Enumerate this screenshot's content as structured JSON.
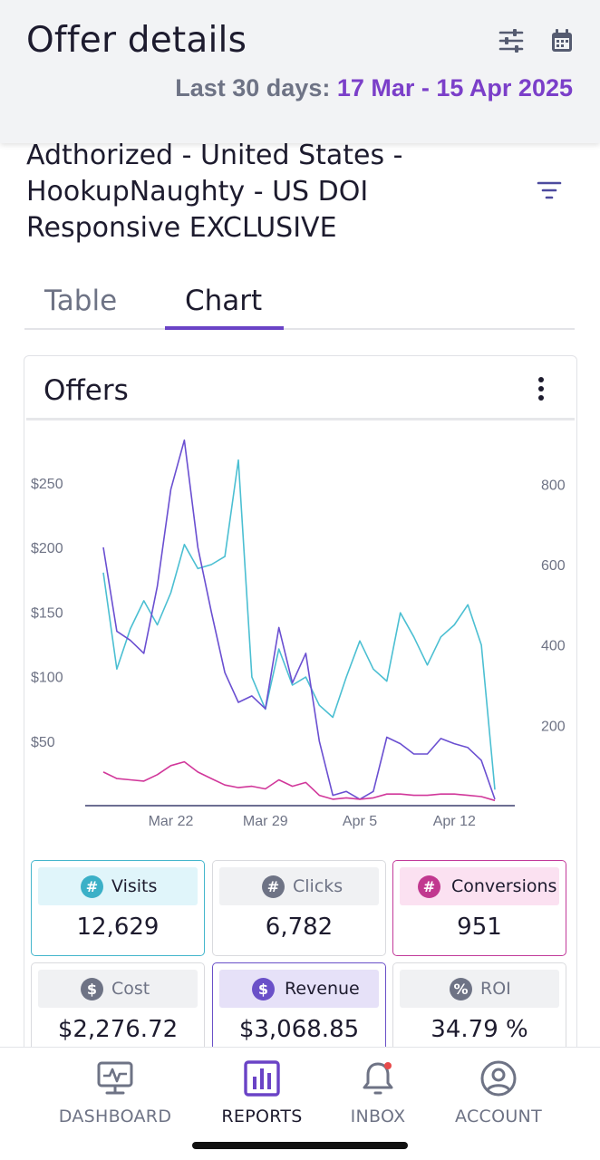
{
  "header": {
    "title": "Offer details",
    "date_label": "Last 30 days:",
    "date_value": "17 Mar - 15 Apr 2025"
  },
  "offer": {
    "name": "Adthorized - United States - HookupNaughty - US DOI Responsive EXCLUSIVE"
  },
  "tabs": [
    {
      "label": "Table",
      "active": false
    },
    {
      "label": "Chart",
      "active": true
    }
  ],
  "card": {
    "title": "Offers"
  },
  "chart_data": {
    "type": "line",
    "x_tick_labels": [
      "Mar 22",
      "Mar 29",
      "Apr 5",
      "Apr 12"
    ],
    "y_left": {
      "tick_labels": [
        "$50",
        "$100",
        "$150",
        "$200",
        "$250"
      ],
      "ticks": [
        50,
        100,
        150,
        200,
        250
      ],
      "range": [
        0,
        280
      ]
    },
    "y_right": {
      "tick_labels": [
        "200",
        "400",
        "600",
        "800"
      ],
      "ticks": [
        200,
        400,
        600,
        800
      ],
      "range": [
        0,
        900
      ]
    },
    "x": [
      "Mar 17",
      "Mar 18",
      "Mar 19",
      "Mar 20",
      "Mar 21",
      "Mar 22",
      "Mar 23",
      "Mar 24",
      "Mar 25",
      "Mar 26",
      "Mar 27",
      "Mar 28",
      "Mar 29",
      "Mar 30",
      "Mar 31",
      "Apr 1",
      "Apr 2",
      "Apr 3",
      "Apr 4",
      "Apr 5",
      "Apr 6",
      "Apr 7",
      "Apr 8",
      "Apr 9",
      "Apr 10",
      "Apr 11",
      "Apr 12",
      "Apr 13",
      "Apr 14",
      "Apr 15"
    ],
    "series": [
      {
        "axis": "right",
        "color": "#4bbfd2",
        "values": [
          580,
          340,
          440,
          510,
          450,
          530,
          650,
          590,
          600,
          620,
          860,
          320,
          240,
          390,
          300,
          320,
          250,
          220,
          320,
          410,
          340,
          310,
          480,
          420,
          350,
          420,
          450,
          500,
          400,
          40
        ]
      },
      {
        "axis": "left",
        "color": "#6a4fd1",
        "values": [
          200,
          135,
          128,
          118,
          170,
          245,
          283,
          200,
          150,
          103,
          80,
          85,
          75,
          138,
          95,
          118,
          50,
          8,
          11,
          5,
          11,
          53,
          48,
          40,
          40,
          52,
          48,
          45,
          35,
          5
        ]
      },
      {
        "axis": "left",
        "color": "#d1379a",
        "values": [
          26,
          21,
          20,
          19,
          24,
          31,
          34,
          26,
          21,
          16,
          14,
          15,
          13,
          20,
          15,
          18,
          8,
          5,
          6,
          5,
          6,
          9,
          9,
          8,
          8,
          9,
          9,
          8,
          7,
          4
        ]
      }
    ]
  },
  "metrics": [
    {
      "key": "visits",
      "label": "Visits",
      "value": "12,629",
      "icon": "hash-icon",
      "glyph": "#",
      "color": "#3bb0c7",
      "selected": true
    },
    {
      "key": "clicks",
      "label": "Clicks",
      "value": "6,782",
      "icon": "hash-icon",
      "glyph": "#",
      "color": "#6e7385",
      "selected": false
    },
    {
      "key": "conversions",
      "label": "Conversions",
      "value": "951",
      "icon": "hash-icon",
      "glyph": "#",
      "color": "#c1388f",
      "selected": true
    },
    {
      "key": "cost",
      "label": "Cost",
      "value": "$2,276.72",
      "icon": "dollar-icon",
      "glyph": "$",
      "color": "#6e7385",
      "selected": false
    },
    {
      "key": "revenue",
      "label": "Revenue",
      "value": "$3,068.85",
      "icon": "dollar-icon",
      "glyph": "$",
      "color": "#6a50c8",
      "selected": true
    },
    {
      "key": "roi",
      "label": "ROI",
      "value": "34.79 %",
      "icon": "percent-icon",
      "glyph": "%",
      "color": "#6e7385",
      "selected": false
    }
  ],
  "nav": [
    {
      "label": "DASHBOARD",
      "icon": "monitor-icon",
      "active": false
    },
    {
      "label": "REPORTS",
      "icon": "bar-chart-icon",
      "active": true
    },
    {
      "label": "INBOX",
      "icon": "bell-icon",
      "active": false
    },
    {
      "label": "ACCOUNT",
      "icon": "user-circle-icon",
      "active": false
    }
  ]
}
